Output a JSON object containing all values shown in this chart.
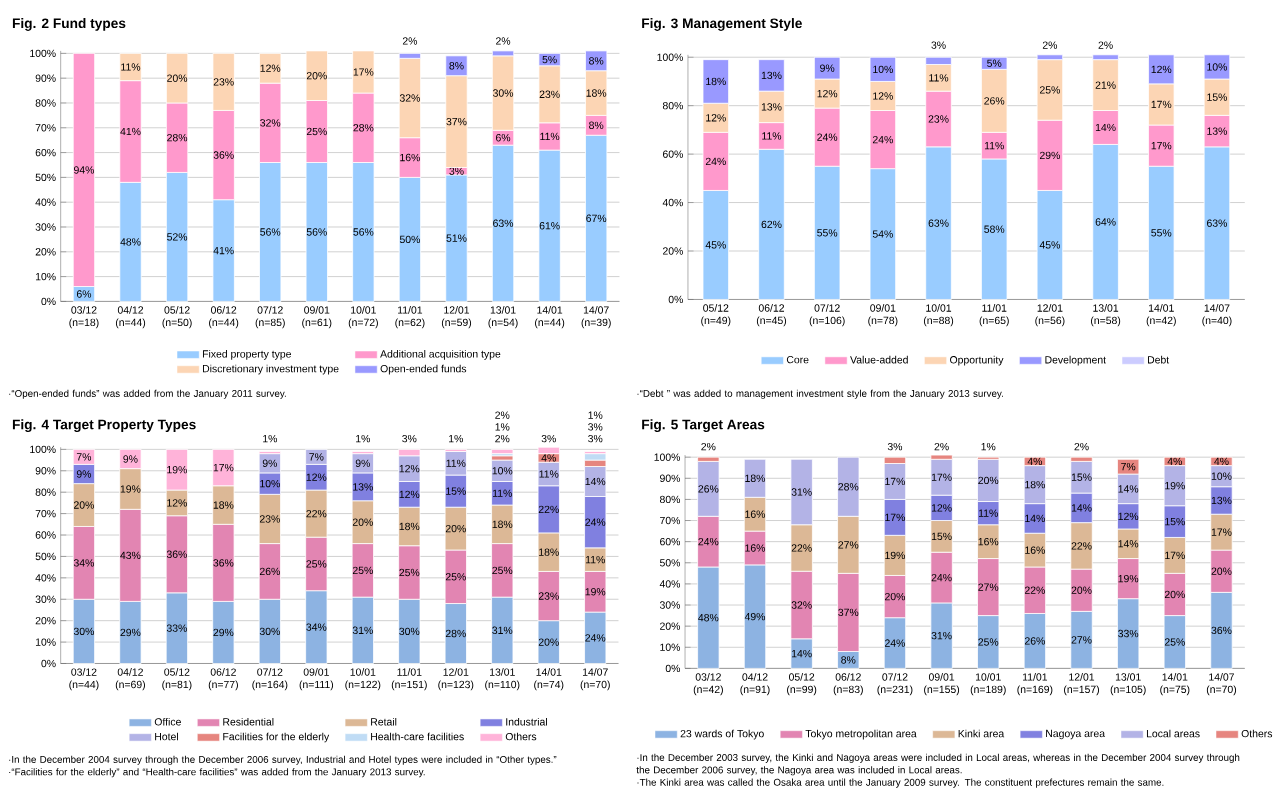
{
  "chart_data": [
    {
      "type": "bar",
      "title": "Fig. 2  Fund types",
      "stacked": true,
      "grid": "y",
      "legend": "bottom",
      "ylim": [
        0,
        101
      ],
      "yticks": [
        {
          "value": 0,
          "label": "0%"
        },
        {
          "value": 10,
          "label": "10%"
        },
        {
          "value": 20,
          "label": "20%"
        },
        {
          "value": 30,
          "label": "30%"
        },
        {
          "value": 40,
          "label": "40%"
        },
        {
          "value": 50,
          "label": "50%"
        },
        {
          "value": 60,
          "label": "60%"
        },
        {
          "value": 70,
          "label": "70%"
        },
        {
          "value": 80,
          "label": "80%"
        },
        {
          "value": 90,
          "label": "90%"
        },
        {
          "value": 100,
          "label": "100%"
        }
      ],
      "categories": [
        "03/12 (n=18)",
        "04/12 (n=44)",
        "05/12 (n=50)",
        "06/12 (n=44)",
        "07/12 (n=85)",
        "09/01 (n=61)",
        "10/01 (n=72)",
        "11/01 (n=62)",
        "12/01 (n=59)",
        "13/01 (n=54)",
        "14/01 (n=44)",
        "14/07 (n=39)"
      ],
      "series": [
        {
          "name": "Fixed property type",
          "color": "#99ccff",
          "values": [
            6,
            48,
            52,
            41,
            56,
            56,
            56,
            50,
            51,
            63,
            61,
            67
          ],
          "value_labels": [
            "6%",
            "48%",
            "52%",
            "41%",
            "56%",
            "56%",
            "56%",
            "50%",
            "51%",
            "63%",
            "61%",
            "67%"
          ]
        },
        {
          "name": "Additional acquisition type",
          "color": "#ff99cc",
          "values": [
            94,
            41,
            28,
            36,
            32,
            25,
            28,
            16,
            3,
            6,
            11,
            8
          ],
          "value_labels": [
            "94%",
            "41%",
            "28%",
            "36%",
            "32%",
            "25%",
            "28%",
            "16%",
            "3%",
            "6%",
            "11%",
            "8%"
          ]
        },
        {
          "name": "Discretionary investment type",
          "color": "#fcd5b4",
          "values": [
            null,
            11,
            20,
            23,
            12,
            20,
            17,
            32,
            37,
            30,
            23,
            18
          ],
          "value_labels": [
            null,
            "11%",
            "20%",
            "23%",
            "12%",
            "20%",
            "17%",
            "32%",
            "37%",
            "30%",
            "23%",
            "18%"
          ]
        },
        {
          "name": "Open-ended funds",
          "color": "#9999ff",
          "values": [
            null,
            null,
            null,
            null,
            null,
            null,
            null,
            2,
            8,
            2,
            5,
            8
          ],
          "value_labels": [
            null,
            null,
            null,
            null,
            null,
            null,
            null,
            "2%",
            "8%",
            "2%",
            "5%",
            "8%"
          ]
        }
      ],
      "annotations": [
        "·“Open-ended funds” was added from the January 2011 survey."
      ]
    },
    {
      "type": "bar",
      "title": "Fig. 3 Management Style",
      "stacked": true,
      "grid": "y",
      "legend": "bottom",
      "ylim": [
        0,
        101
      ],
      "yticks": [
        {
          "value": 0,
          "label": "0%"
        },
        {
          "value": 20,
          "label": "20%"
        },
        {
          "value": 40,
          "label": "40%"
        },
        {
          "value": 60,
          "label": "60%"
        },
        {
          "value": 80,
          "label": "80%"
        },
        {
          "value": 100,
          "label": "100%"
        }
      ],
      "categories": [
        "05/12 (n=49)",
        "06/12 (n=45)",
        "07/12 (n=106)",
        "09/01 (n=78)",
        "10/01 (n=88)",
        "11/01 (n=65)",
        "12/01 (n=56)",
        "13/01 (n=58)",
        "14/01 (n=42)",
        "14/07 (n=40)"
      ],
      "series": [
        {
          "name": "Core",
          "color": "#99ccff",
          "values": [
            45,
            62,
            55,
            54,
            63,
            58,
            45,
            64,
            55,
            63
          ],
          "value_labels": [
            "45%",
            "62%",
            "55%",
            "54%",
            "63%",
            "58%",
            "45%",
            "64%",
            "55%",
            "63%"
          ]
        },
        {
          "name": "Value-added",
          "color": "#ff99cc",
          "values": [
            24,
            11,
            24,
            24,
            23,
            11,
            29,
            14,
            17,
            13
          ],
          "value_labels": [
            "24%",
            "11%",
            "24%",
            "24%",
            "23%",
            "11%",
            "29%",
            "14%",
            "17%",
            "13%"
          ]
        },
        {
          "name": "Opportunity",
          "color": "#fcd5b4",
          "values": [
            12,
            13,
            12,
            12,
            11,
            26,
            25,
            21,
            17,
            15
          ],
          "value_labels": [
            "12%",
            "13%",
            "12%",
            "12%",
            "11%",
            "26%",
            "25%",
            "21%",
            "17%",
            "15%"
          ]
        },
        {
          "name": "Development",
          "color": "#9999ff",
          "values": [
            18,
            13,
            9,
            10,
            3,
            5,
            2,
            2,
            12,
            10
          ],
          "value_labels": [
            "18%",
            "13%",
            "9%",
            "10%",
            "3%",
            "5%",
            "2%",
            "2%",
            "12%",
            "10%"
          ]
        },
        {
          "name": "Debt",
          "color": "#ccccff",
          "values": [
            null,
            null,
            null,
            null,
            null,
            null,
            null,
            null,
            null,
            null
          ]
        }
      ],
      "annotations": [
        "·“Debt ” was added to management investment style from the January 2013 survey."
      ]
    },
    {
      "type": "bar",
      "title": "Fig. 4 Target Property Types",
      "stacked": true,
      "grid": "y",
      "legend": "bottom",
      "ylim": [
        0,
        101
      ],
      "yticks": [
        {
          "value": 0,
          "label": "0%"
        },
        {
          "value": 10,
          "label": "10%"
        },
        {
          "value": 20,
          "label": "20%"
        },
        {
          "value": 30,
          "label": "30%"
        },
        {
          "value": 40,
          "label": "40%"
        },
        {
          "value": 50,
          "label": "50%"
        },
        {
          "value": 60,
          "label": "60%"
        },
        {
          "value": 70,
          "label": "70%"
        },
        {
          "value": 80,
          "label": "80%"
        },
        {
          "value": 90,
          "label": "90%"
        },
        {
          "value": 100,
          "label": "100%"
        }
      ],
      "categories": [
        "03/12 (n=44)",
        "04/12 (n=69)",
        "05/12 (n=81)",
        "06/12 (n=77)",
        "07/12 (n=164)",
        "09/01 (n=111)",
        "10/01 (n=122)",
        "11/01 (n=151)",
        "12/01 (n=123)",
        "13/01 (n=110)",
        "14/01 (n=74)",
        "14/07 (n=70)"
      ],
      "series": [
        {
          "name": "Office",
          "color": "#8db3e2",
          "values": [
            30,
            29,
            33,
            29,
            30,
            34,
            31,
            30,
            28,
            31,
            20,
            24
          ],
          "value_labels": [
            "30%",
            "29%",
            "33%",
            "29%",
            "30%",
            "34%",
            "31%",
            "30%",
            "28%",
            "31%",
            "20%",
            "24%"
          ]
        },
        {
          "name": "Residential",
          "color": "#e285b2",
          "values": [
            34,
            43,
            36,
            36,
            26,
            25,
            25,
            25,
            25,
            25,
            23,
            19
          ],
          "value_labels": [
            "34%",
            "43%",
            "36%",
            "36%",
            "26%",
            "25%",
            "25%",
            "25%",
            "25%",
            "25%",
            "23%",
            "19%"
          ]
        },
        {
          "name": "Retail",
          "color": "#dcb896",
          "values": [
            20,
            19,
            12,
            18,
            23,
            22,
            20,
            18,
            20,
            18,
            18,
            11
          ],
          "value_labels": [
            "20%",
            "19%",
            "12%",
            "18%",
            "23%",
            "22%",
            "20%",
            "18%",
            "20%",
            "18%",
            "18%",
            "11%"
          ]
        },
        {
          "name": "Industrial",
          "color": "#8080e0",
          "values": [
            9,
            null,
            null,
            null,
            10,
            12,
            13,
            12,
            15,
            11,
            22,
            24
          ],
          "value_labels": [
            "9%",
            null,
            null,
            null,
            "10%",
            "12%",
            "13%",
            "12%",
            "15%",
            "11%",
            "22%",
            "24%"
          ]
        },
        {
          "name": "Hotel",
          "color": "#b3b3e6",
          "values": [
            null,
            null,
            null,
            null,
            9,
            7,
            9,
            12,
            11,
            10,
            11,
            14
          ],
          "value_labels": [
            null,
            null,
            null,
            null,
            "9%",
            "7%",
            "9%",
            "12%",
            "11%",
            "10%",
            "11%",
            "14%"
          ]
        },
        {
          "name": "Facilities for the elderly",
          "color": "#e6857f",
          "values": [
            null,
            null,
            null,
            null,
            null,
            null,
            null,
            null,
            null,
            2,
            4,
            3
          ],
          "value_labels": [
            null,
            null,
            null,
            null,
            null,
            null,
            null,
            null,
            null,
            "2%",
            "4%",
            "3%"
          ]
        },
        {
          "name": "Health-care facilities",
          "color": "#c0dcf5",
          "values": [
            null,
            null,
            null,
            null,
            null,
            null,
            null,
            null,
            null,
            1,
            null,
            3
          ],
          "value_labels": [
            null,
            null,
            null,
            null,
            null,
            null,
            null,
            null,
            null,
            "1%",
            null,
            "3%"
          ]
        },
        {
          "name": "Others",
          "color": "#ffb3d9",
          "values": [
            7,
            9,
            19,
            17,
            1,
            null,
            1,
            3,
            1,
            2,
            3,
            1
          ],
          "value_labels": [
            "7%",
            "9%",
            "19%",
            "17%",
            "1%",
            null,
            "1%",
            "3%",
            "1%",
            "2%",
            "3%",
            "1%"
          ]
        }
      ],
      "annotations": [
        "·In the December 2004 survey through the December 2006 survey, Industrial and Hotel types were included in “Other types.”",
        "·“Facilities for the elderly” and “Health-care facilities” was added from the January 2013 survey."
      ]
    },
    {
      "type": "bar",
      "title": "Fig. 5 Target Areas",
      "stacked": true,
      "grid": "y",
      "legend": "bottom",
      "ylim": [
        0,
        101
      ],
      "yticks": [
        {
          "value": 0,
          "label": "0%"
        },
        {
          "value": 10,
          "label": "10%"
        },
        {
          "value": 20,
          "label": "20%"
        },
        {
          "value": 30,
          "label": "30%"
        },
        {
          "value": 40,
          "label": "40%"
        },
        {
          "value": 50,
          "label": "50%"
        },
        {
          "value": 60,
          "label": "60%"
        },
        {
          "value": 70,
          "label": "70%"
        },
        {
          "value": 80,
          "label": "80%"
        },
        {
          "value": 90,
          "label": "90%"
        },
        {
          "value": 100,
          "label": "100%"
        }
      ],
      "categories": [
        "03/12 (n=42)",
        "04/12 (n=91)",
        "05/12 (n=99)",
        "06/12 (n=83)",
        "07/12 (n=231)",
        "09/01 (n=155)",
        "10/01 (n=189)",
        "11/01 (n=169)",
        "12/01 (n=157)",
        "13/01 (n=105)",
        "14/01 (n=75)",
        "14/07 (n=70)"
      ],
      "series": [
        {
          "name": "23 wards of Tokyo",
          "color": "#8db3e2",
          "values": [
            48,
            49,
            14,
            8,
            24,
            31,
            25,
            26,
            27,
            33,
            25,
            36
          ],
          "value_labels": [
            "48%",
            "49%",
            "14%",
            "8%",
            "24%",
            "31%",
            "25%",
            "26%",
            "27%",
            "33%",
            "25%",
            "36%"
          ]
        },
        {
          "name": "Tokyo metropolitan area",
          "color": "#e285b2",
          "values": [
            24,
            16,
            32,
            37,
            20,
            24,
            27,
            22,
            20,
            19,
            20,
            20
          ],
          "value_labels": [
            "24%",
            "16%",
            "32%",
            "37%",
            "20%",
            "24%",
            "27%",
            "22%",
            "20%",
            "19%",
            "20%",
            "20%"
          ]
        },
        {
          "name": "Kinki area",
          "color": "#dcb896",
          "values": [
            null,
            16,
            22,
            27,
            19,
            15,
            16,
            16,
            22,
            14,
            17,
            17
          ],
          "value_labels": [
            null,
            "16%",
            "22%",
            "27%",
            "19%",
            "15%",
            "16%",
            "16%",
            "22%",
            "14%",
            "17%",
            "17%"
          ]
        },
        {
          "name": "Nagoya area",
          "color": "#8080e0",
          "values": [
            null,
            null,
            null,
            null,
            17,
            12,
            11,
            14,
            14,
            12,
            15,
            13
          ],
          "value_labels": [
            null,
            null,
            null,
            null,
            "17%",
            "12%",
            "11%",
            "14%",
            "14%",
            "12%",
            "15%",
            "13%"
          ]
        },
        {
          "name": "Local areas",
          "color": "#b3b3e6",
          "values": [
            26,
            18,
            31,
            28,
            17,
            17,
            20,
            18,
            15,
            14,
            19,
            10
          ],
          "value_labels": [
            "26%",
            "18%",
            "31%",
            "28%",
            "17%",
            "17%",
            "20%",
            "18%",
            "15%",
            "14%",
            "19%",
            "10%"
          ]
        },
        {
          "name": "Others",
          "color": "#e6857f",
          "values": [
            2,
            null,
            null,
            null,
            3,
            2,
            1,
            4,
            2,
            7,
            4,
            4
          ],
          "value_labels": [
            "2%",
            null,
            null,
            null,
            "3%",
            "2%",
            "1%",
            "4%",
            "2%",
            "7%",
            "4%",
            "4%"
          ]
        }
      ],
      "annotations": [
        "·In the December 2003 survey, the Kinki and Nagoya areas were included in Local areas, whereas in the December 2004 survey through the December 2006 survey, the Nagoya area was included in Local areas.",
        "·The Kinki area was called the Osaka area until the January 2009 survey. The constituent prefectures remain the same."
      ]
    }
  ]
}
